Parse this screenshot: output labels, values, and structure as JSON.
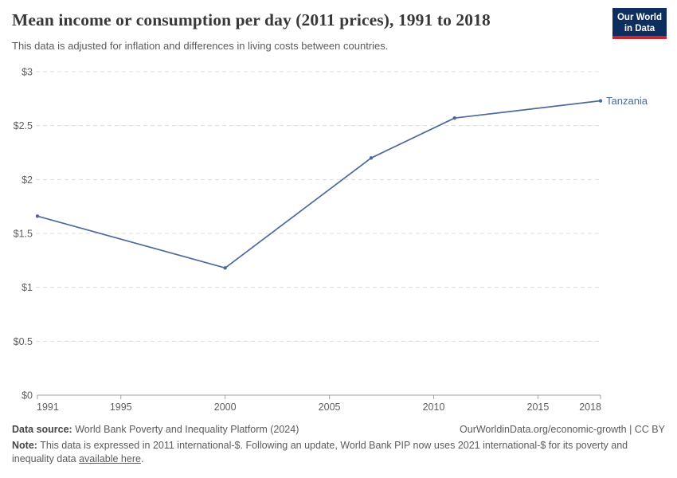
{
  "header": {
    "title": "Mean income or consumption per day (2011 prices), 1991 to 2018",
    "subtitle": "This data is adjusted for inflation and differences in living costs between countries."
  },
  "logo": {
    "line1": "Our World",
    "line2": "in Data",
    "background_color": "#0d2e5f",
    "accent_color": "#c8282d"
  },
  "chart_data": {
    "type": "line",
    "title": "Mean income or consumption per day (2011 prices), 1991 to 2018",
    "xlabel": "",
    "ylabel": "",
    "xlim": [
      1991,
      2018
    ],
    "ylim": [
      0,
      3
    ],
    "grid": "horizontal-dashed",
    "legend_position": "label-at-line-end",
    "xticks": [
      {
        "v": 1991,
        "label": "1991"
      },
      {
        "v": 1995,
        "label": "1995"
      },
      {
        "v": 2000,
        "label": "2000"
      },
      {
        "v": 2005,
        "label": "2005"
      },
      {
        "v": 2010,
        "label": "2010"
      },
      {
        "v": 2015,
        "label": "2015"
      },
      {
        "v": 2018,
        "label": "2018"
      }
    ],
    "yticks": [
      {
        "v": 0,
        "label": "$0"
      },
      {
        "v": 0.5,
        "label": "$0.5"
      },
      {
        "v": 1,
        "label": "$1"
      },
      {
        "v": 1.5,
        "label": "$1.5"
      },
      {
        "v": 2,
        "label": "$2"
      },
      {
        "v": 2.5,
        "label": "$2.5"
      },
      {
        "v": 3,
        "label": "$3"
      }
    ],
    "series": [
      {
        "name": "Tanzania",
        "color": "#4c6a9c",
        "points": [
          {
            "x": 1991,
            "y": 1.66
          },
          {
            "x": 2000,
            "y": 1.18
          },
          {
            "x": 2007,
            "y": 2.2
          },
          {
            "x": 2011,
            "y": 2.57
          },
          {
            "x": 2018,
            "y": 2.73
          }
        ]
      }
    ],
    "style": {
      "gridline_color": "#dcdcdc",
      "axis_color": "#a2a2a2",
      "tick_label_color": "#5e5e5e"
    }
  },
  "footer": {
    "source_label": "Data source:",
    "source_text": "World Bank Poverty and Inequality Platform (2024)",
    "rights": "OurWorldinData.org/economic-growth | CC BY",
    "note_label": "Note:",
    "note_text": "This data is expressed in 2011 international-$. Following an update, World Bank PIP now uses 2021 international-$ for its poverty and inequality data",
    "note_link": "available here",
    "note_suffix": "."
  }
}
